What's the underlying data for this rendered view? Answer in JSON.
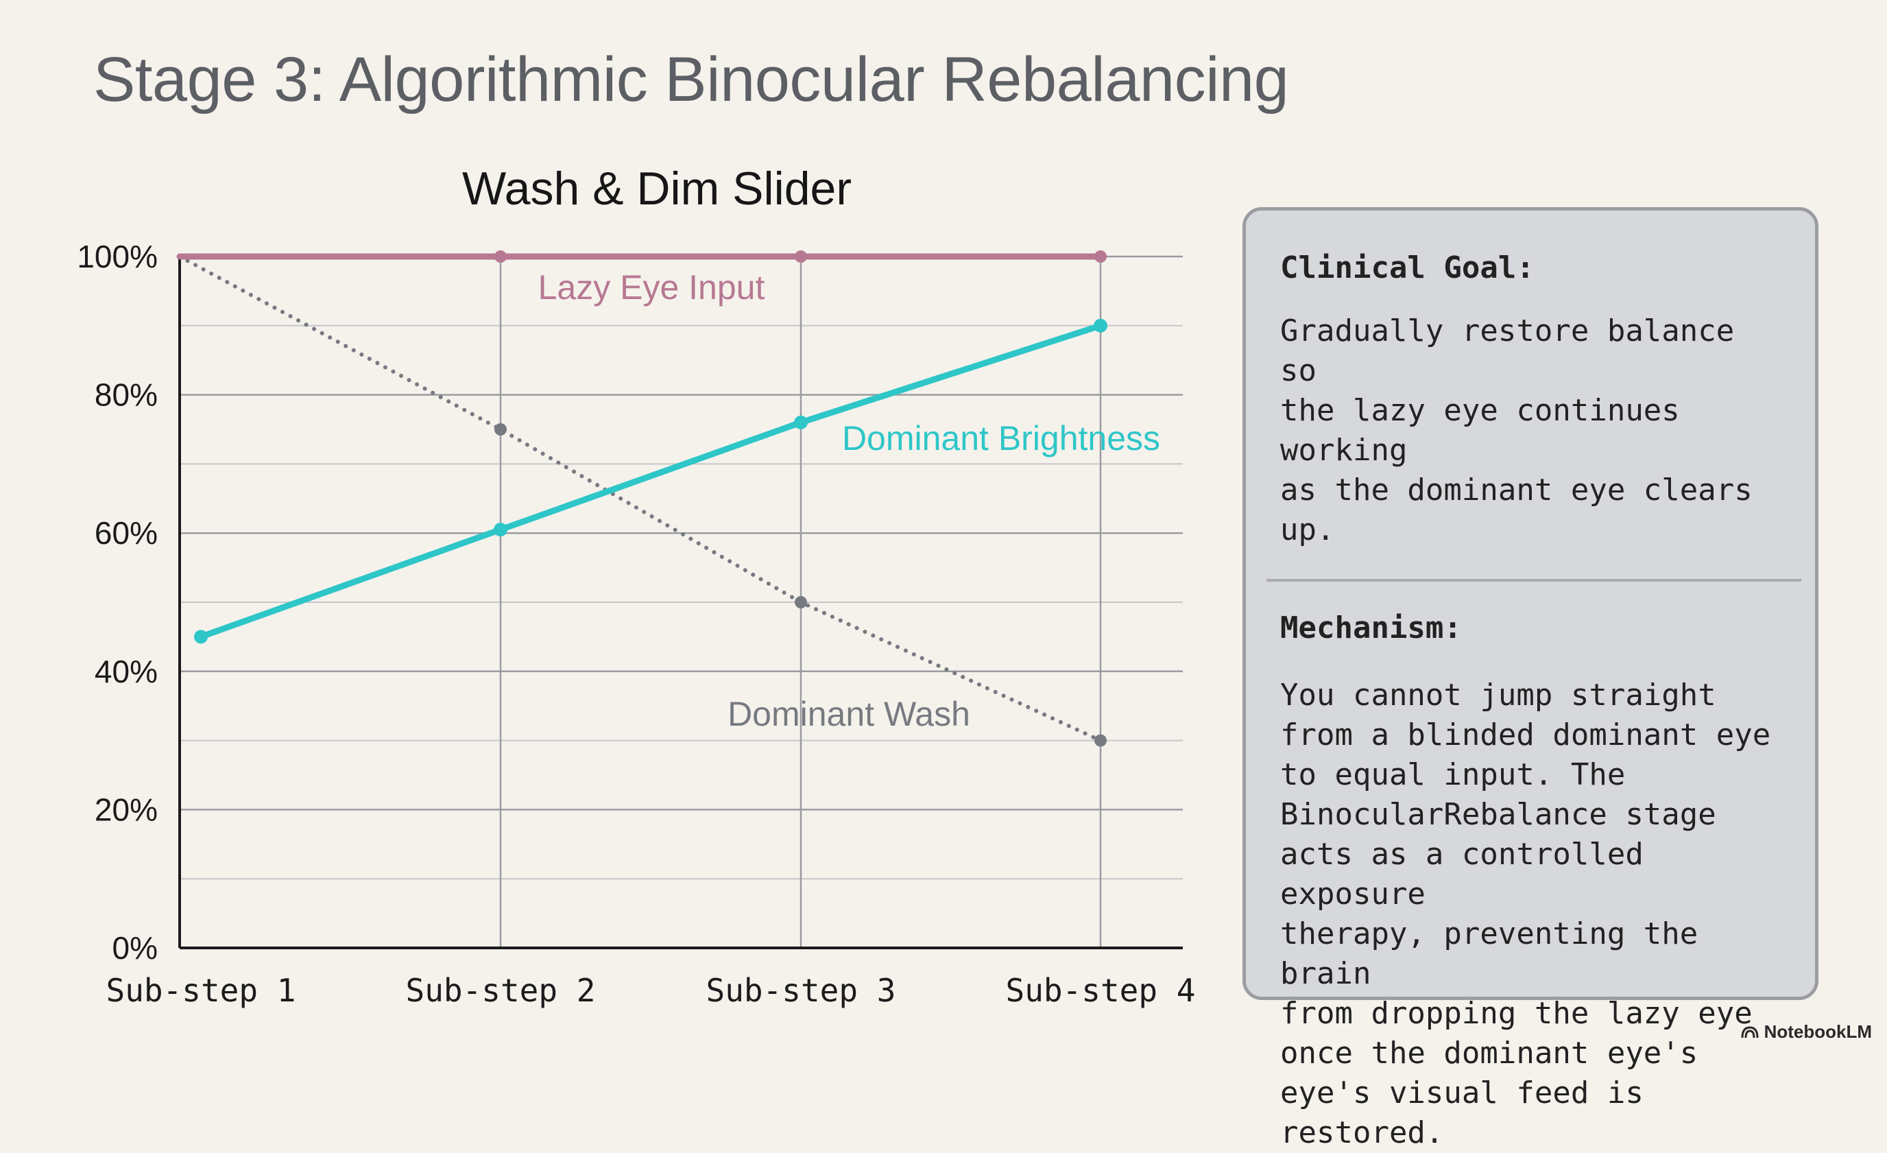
{
  "slide": {
    "title": "Stage 3: Algorithmic Binocular Rebalancing"
  },
  "chart_data": {
    "type": "line",
    "title": "Wash & Dim Slider",
    "xlabel": "",
    "ylabel": "",
    "categories": [
      "Sub-step 1",
      "Sub-step 2",
      "Sub-step 3",
      "Sub-step 4"
    ],
    "ylim": [
      0,
      100
    ],
    "yticks": [
      "0%",
      "20%",
      "40%",
      "60%",
      "80%",
      "100%"
    ],
    "grid": true,
    "series": [
      {
        "name": "Lazy Eye Input",
        "values": [
          100,
          100,
          100,
          100
        ],
        "color": "#b77892",
        "style": "solid"
      },
      {
        "name": "Dominant Brightness",
        "values": [
          45,
          60.5,
          76,
          90
        ],
        "color": "#2ec6c8",
        "style": "solid"
      },
      {
        "name": "Dominant Wash",
        "values": [
          100,
          75,
          50,
          30
        ],
        "color": "#777a80",
        "style": "dotted"
      }
    ]
  },
  "panel": {
    "goal_heading": "Clinical Goal:",
    "goal_text": "Gradually restore balance so\nthe lazy eye continues working\nas the dominant eye clears up.",
    "mechanism_heading": "Mechanism:",
    "mechanism_text": "You cannot jump straight\nfrom a blinded dominant eye\nto equal input. The\nBinocularRebalance stage\nacts as a controlled exposure\ntherapy, preventing the brain\nfrom dropping the lazy eye\nonce the dominant eye's\neye's visual feed is\nrestored."
  },
  "watermark": {
    "text": "NotebookLM",
    "icon": "notebooklm-logo-icon"
  }
}
